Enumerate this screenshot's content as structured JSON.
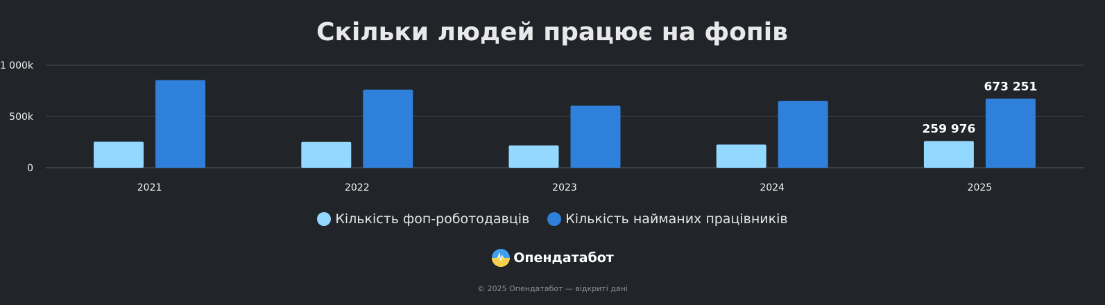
{
  "chart_data": {
    "type": "bar",
    "title": "Скільки людей працює на фопів",
    "categories": [
      "2021",
      "2022",
      "2023",
      "2024",
      "2025"
    ],
    "series": [
      {
        "name": "Кількість фоп-роботодавців",
        "color": "#93d8fe",
        "values": [
          253000,
          252000,
          218000,
          226000,
          259976
        ]
      },
      {
        "name": "Кількість найманих працівників",
        "color": "#2f80db",
        "values": [
          855000,
          760000,
          605000,
          650000,
          673251
        ]
      }
    ],
    "data_labels": [
      {
        "series": 0,
        "category": 4,
        "text": "259 976"
      },
      {
        "series": 1,
        "category": 4,
        "text": "673 251"
      }
    ],
    "yticks": [
      {
        "value": 0,
        "label": "0"
      },
      {
        "value": 500000,
        "label": "500k"
      },
      {
        "value": 1000000,
        "label": "1 000k"
      }
    ],
    "ylim": [
      0,
      1000000
    ],
    "grid": true,
    "legend_position": "bottom-center"
  },
  "brand": {
    "name": "Опендатабот",
    "logo_icon": "opendatabot-logo-icon"
  },
  "footer": {
    "text": "© 2025 Опендатабот — відкриті дані"
  }
}
